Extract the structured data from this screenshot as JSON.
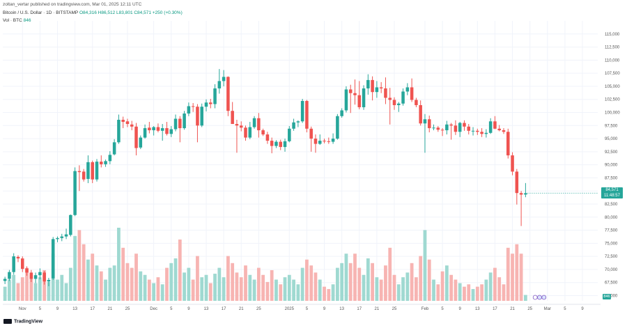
{
  "header": {
    "publisher": "zoltan_vertar published on tradingview.com, Mar 01, 2025 12:11 UTC",
    "symbol": "Bitcoin / U.S. Dollar · 1D · BITSTAMP",
    "ohlc": "O84,316 H86,512 L83,801 C84,571 +250 (+0.30%)",
    "volume_label": "Vol · BTC",
    "volume_value": "846"
  },
  "current_price": {
    "value": "84,571",
    "countdown": "11:48:57"
  },
  "volume_tag": "846",
  "footer": {
    "brand": "TradingView"
  },
  "colors": {
    "up": "#26a69a",
    "down": "#ef5350",
    "vol_up": "#9fd9d1",
    "vol_down": "#f7b4b2"
  },
  "chart_data": {
    "type": "candlestick",
    "title": "Bitcoin / U.S. Dollar · 1D · BITSTAMP",
    "ylim": [
      64000,
      117500
    ],
    "grid": true,
    "y_ticks": [
      {
        "value": 115000,
        "label": "115,000"
      },
      {
        "value": 112500,
        "label": "112,500"
      },
      {
        "value": 110000,
        "label": "110,000"
      },
      {
        "value": 107500,
        "label": "107,500"
      },
      {
        "value": 105000,
        "label": "105,000"
      },
      {
        "value": 102500,
        "label": "102,500"
      },
      {
        "value": 100000,
        "label": "100,000"
      },
      {
        "value": 97500,
        "label": "97,500"
      },
      {
        "value": 95000,
        "label": "95,000"
      },
      {
        "value": 92500,
        "label": "92,500"
      },
      {
        "value": 90000,
        "label": "90,000"
      },
      {
        "value": 87500,
        "label": "87,500"
      },
      {
        "value": 85000,
        "label": "85,000"
      },
      {
        "value": 82500,
        "label": "82,500"
      },
      {
        "value": 80000,
        "label": "80,000"
      },
      {
        "value": 77500,
        "label": "77,500"
      },
      {
        "value": 75000,
        "label": "75,000"
      },
      {
        "value": 72500,
        "label": "72,500"
      },
      {
        "value": 70000,
        "label": "70,000"
      },
      {
        "value": 67500,
        "label": "67,500"
      },
      {
        "value": 65000,
        "label": "65,000"
      }
    ],
    "x_ticks": [
      {
        "index": 4,
        "label": "Nov"
      },
      {
        "index": 8,
        "label": "5"
      },
      {
        "index": 12,
        "label": "9"
      },
      {
        "index": 16,
        "label": "13"
      },
      {
        "index": 20,
        "label": "17"
      },
      {
        "index": 24,
        "label": "21"
      },
      {
        "index": 28,
        "label": "25"
      },
      {
        "index": 34,
        "label": "Dec"
      },
      {
        "index": 38,
        "label": "5"
      },
      {
        "index": 42,
        "label": "9"
      },
      {
        "index": 46,
        "label": "13"
      },
      {
        "index": 50,
        "label": "17"
      },
      {
        "index": 54,
        "label": "21"
      },
      {
        "index": 58,
        "label": "25"
      },
      {
        "index": 65,
        "label": "2025"
      },
      {
        "index": 69,
        "label": "5"
      },
      {
        "index": 73,
        "label": "9"
      },
      {
        "index": 77,
        "label": "13"
      },
      {
        "index": 81,
        "label": "17"
      },
      {
        "index": 85,
        "label": "21"
      },
      {
        "index": 89,
        "label": "25"
      },
      {
        "index": 96,
        "label": "Feb"
      },
      {
        "index": 100,
        "label": "5"
      },
      {
        "index": 104,
        "label": "9"
      },
      {
        "index": 108,
        "label": "13"
      },
      {
        "index": 112,
        "label": "17"
      },
      {
        "index": 116,
        "label": "21"
      },
      {
        "index": 120,
        "label": "25"
      },
      {
        "index": 124,
        "label": "Mar"
      },
      {
        "index": 128,
        "label": "5"
      },
      {
        "index": 132,
        "label": "9"
      }
    ],
    "n_slots": 136,
    "candles": [
      {
        "o": 67800,
        "h": 68600,
        "l": 67200,
        "c": 68200,
        "v": 12
      },
      {
        "o": 68200,
        "h": 69900,
        "l": 67800,
        "c": 69500,
        "v": 18
      },
      {
        "o": 69500,
        "h": 73100,
        "l": 69000,
        "c": 72500,
        "v": 22
      },
      {
        "o": 72400,
        "h": 72700,
        "l": 71400,
        "c": 72100,
        "v": 15
      },
      {
        "o": 72100,
        "h": 72500,
        "l": 69500,
        "c": 70100,
        "v": 20
      },
      {
        "o": 70200,
        "h": 70600,
        "l": 68800,
        "c": 69400,
        "v": 28
      },
      {
        "o": 69400,
        "h": 69900,
        "l": 67600,
        "c": 68200,
        "v": 22
      },
      {
        "o": 68200,
        "h": 69400,
        "l": 67400,
        "c": 68900,
        "v": 15
      },
      {
        "o": 68900,
        "h": 70200,
        "l": 68100,
        "c": 69500,
        "v": 20
      },
      {
        "o": 69400,
        "h": 69700,
        "l": 67100,
        "c": 67700,
        "v": 26
      },
      {
        "o": 67700,
        "h": 68400,
        "l": 66800,
        "c": 68000,
        "v": 16
      },
      {
        "o": 68300,
        "h": 76200,
        "l": 68000,
        "c": 75800,
        "v": 40
      },
      {
        "o": 75800,
        "h": 76300,
        "l": 75200,
        "c": 76000,
        "v": 18
      },
      {
        "o": 76000,
        "h": 76800,
        "l": 75400,
        "c": 76300,
        "v": 22
      },
      {
        "o": 76300,
        "h": 77800,
        "l": 75800,
        "c": 76700,
        "v": 15
      },
      {
        "o": 76600,
        "h": 80500,
        "l": 76300,
        "c": 80400,
        "v": 28
      },
      {
        "o": 80400,
        "h": 89500,
        "l": 80200,
        "c": 88800,
        "v": 55
      },
      {
        "o": 88800,
        "h": 89900,
        "l": 85000,
        "c": 88600,
        "v": 60
      },
      {
        "o": 88700,
        "h": 89200,
        "l": 86800,
        "c": 87200,
        "v": 48
      },
      {
        "o": 87300,
        "h": 91800,
        "l": 86500,
        "c": 90500,
        "v": 35
      },
      {
        "o": 90500,
        "h": 90800,
        "l": 86500,
        "c": 87200,
        "v": 40
      },
      {
        "o": 87200,
        "h": 91100,
        "l": 86800,
        "c": 90600,
        "v": 30
      },
      {
        "o": 90600,
        "h": 91800,
        "l": 89500,
        "c": 90100,
        "v": 25
      },
      {
        "o": 90100,
        "h": 91000,
        "l": 89600,
        "c": 90700,
        "v": 18
      },
      {
        "o": 90700,
        "h": 92600,
        "l": 90100,
        "c": 91900,
        "v": 28
      },
      {
        "o": 92000,
        "h": 94900,
        "l": 91800,
        "c": 94300,
        "v": 30
      },
      {
        "o": 94300,
        "h": 99600,
        "l": 94000,
        "c": 98600,
        "v": 62
      },
      {
        "o": 98600,
        "h": 99200,
        "l": 97000,
        "c": 98200,
        "v": 45
      },
      {
        "o": 98300,
        "h": 98800,
        "l": 97200,
        "c": 97800,
        "v": 32
      },
      {
        "o": 97700,
        "h": 98400,
        "l": 96600,
        "c": 97300,
        "v": 28
      },
      {
        "o": 97300,
        "h": 98000,
        "l": 91800,
        "c": 93200,
        "v": 40
      },
      {
        "o": 93300,
        "h": 95600,
        "l": 93000,
        "c": 95200,
        "v": 25
      },
      {
        "o": 95200,
        "h": 97700,
        "l": 95000,
        "c": 97000,
        "v": 22
      },
      {
        "o": 97100,
        "h": 98200,
        "l": 96000,
        "c": 96600,
        "v": 18
      },
      {
        "o": 96600,
        "h": 97400,
        "l": 95600,
        "c": 97200,
        "v": 15
      },
      {
        "o": 97200,
        "h": 97900,
        "l": 96200,
        "c": 96500,
        "v": 20
      },
      {
        "o": 96500,
        "h": 97800,
        "l": 94600,
        "c": 97000,
        "v": 14
      },
      {
        "o": 97000,
        "h": 98200,
        "l": 95600,
        "c": 95900,
        "v": 28
      },
      {
        "o": 95900,
        "h": 97400,
        "l": 95300,
        "c": 96800,
        "v": 32
      },
      {
        "o": 96800,
        "h": 99600,
        "l": 96400,
        "c": 98800,
        "v": 36
      },
      {
        "o": 98800,
        "h": 99300,
        "l": 94300,
        "c": 97000,
        "v": 52
      },
      {
        "o": 97000,
        "h": 100300,
        "l": 96700,
        "c": 99800,
        "v": 24
      },
      {
        "o": 99800,
        "h": 101900,
        "l": 99300,
        "c": 101200,
        "v": 28
      },
      {
        "o": 101200,
        "h": 101800,
        "l": 100100,
        "c": 101100,
        "v": 18
      },
      {
        "o": 101100,
        "h": 101600,
        "l": 94300,
        "c": 97500,
        "v": 38
      },
      {
        "o": 97500,
        "h": 101700,
        "l": 97200,
        "c": 101100,
        "v": 20
      },
      {
        "o": 101100,
        "h": 102500,
        "l": 100200,
        "c": 101900,
        "v": 22
      },
      {
        "o": 101900,
        "h": 102600,
        "l": 100800,
        "c": 101600,
        "v": 15
      },
      {
        "o": 101600,
        "h": 105400,
        "l": 100800,
        "c": 104600,
        "v": 23
      },
      {
        "o": 104600,
        "h": 108300,
        "l": 103600,
        "c": 106000,
        "v": 28
      },
      {
        "o": 106000,
        "h": 108100,
        "l": 105000,
        "c": 106800,
        "v": 20
      },
      {
        "o": 106800,
        "h": 106900,
        "l": 99300,
        "c": 100300,
        "v": 38
      },
      {
        "o": 100300,
        "h": 102000,
        "l": 97800,
        "c": 97800,
        "v": 32
      },
      {
        "o": 97800,
        "h": 98600,
        "l": 92300,
        "c": 97500,
        "v": 24
      },
      {
        "o": 97500,
        "h": 98300,
        "l": 96400,
        "c": 97100,
        "v": 20
      },
      {
        "o": 97100,
        "h": 97500,
        "l": 94600,
        "c": 95200,
        "v": 30
      },
      {
        "o": 95200,
        "h": 98200,
        "l": 94900,
        "c": 97200,
        "v": 22
      },
      {
        "o": 97200,
        "h": 99300,
        "l": 96900,
        "c": 98900,
        "v": 18
      },
      {
        "o": 98900,
        "h": 99900,
        "l": 95200,
        "c": 96600,
        "v": 28
      },
      {
        "o": 96600,
        "h": 96900,
        "l": 95500,
        "c": 95800,
        "v": 22
      },
      {
        "o": 95800,
        "h": 96300,
        "l": 94000,
        "c": 94600,
        "v": 16
      },
      {
        "o": 94600,
        "h": 95200,
        "l": 92200,
        "c": 93600,
        "v": 26
      },
      {
        "o": 93600,
        "h": 94700,
        "l": 93200,
        "c": 94400,
        "v": 18
      },
      {
        "o": 94400,
        "h": 94800,
        "l": 92800,
        "c": 93400,
        "v": 14
      },
      {
        "o": 93400,
        "h": 95000,
        "l": 92500,
        "c": 94500,
        "v": 20
      },
      {
        "o": 94500,
        "h": 97400,
        "l": 94300,
        "c": 96900,
        "v": 22
      },
      {
        "o": 96900,
        "h": 98800,
        "l": 96500,
        "c": 98100,
        "v": 18
      },
      {
        "o": 98100,
        "h": 98500,
        "l": 97200,
        "c": 98300,
        "v": 14
      },
      {
        "o": 98300,
        "h": 102600,
        "l": 98000,
        "c": 102200,
        "v": 28
      },
      {
        "o": 102200,
        "h": 102400,
        "l": 96200,
        "c": 96900,
        "v": 35
      },
      {
        "o": 96900,
        "h": 97300,
        "l": 92500,
        "c": 95000,
        "v": 30
      },
      {
        "o": 95000,
        "h": 95800,
        "l": 92300,
        "c": 94000,
        "v": 24
      },
      {
        "o": 94000,
        "h": 95800,
        "l": 93800,
        "c": 94600,
        "v": 18
      },
      {
        "o": 94600,
        "h": 95000,
        "l": 94100,
        "c": 94500,
        "v": 12
      },
      {
        "o": 94500,
        "h": 95200,
        "l": 94000,
        "c": 94400,
        "v": 10
      },
      {
        "o": 94400,
        "h": 96000,
        "l": 94000,
        "c": 95000,
        "v": 14
      },
      {
        "o": 95000,
        "h": 99700,
        "l": 94800,
        "c": 99300,
        "v": 28
      },
      {
        "o": 99300,
        "h": 100800,
        "l": 99000,
        "c": 100400,
        "v": 32
      },
      {
        "o": 100400,
        "h": 105000,
        "l": 100000,
        "c": 104400,
        "v": 40
      },
      {
        "o": 104400,
        "h": 105300,
        "l": 99900,
        "c": 103700,
        "v": 32
      },
      {
        "o": 103700,
        "h": 106300,
        "l": 101500,
        "c": 103300,
        "v": 40
      },
      {
        "o": 103300,
        "h": 106000,
        "l": 100600,
        "c": 101000,
        "v": 28
      },
      {
        "o": 101000,
        "h": 105200,
        "l": 100500,
        "c": 104600,
        "v": 22
      },
      {
        "o": 104600,
        "h": 107300,
        "l": 103400,
        "c": 106200,
        "v": 36
      },
      {
        "o": 106200,
        "h": 106900,
        "l": 102300,
        "c": 103900,
        "v": 32
      },
      {
        "o": 103900,
        "h": 106000,
        "l": 102800,
        "c": 104800,
        "v": 20
      },
      {
        "o": 104800,
        "h": 105800,
        "l": 103700,
        "c": 104600,
        "v": 18
      },
      {
        "o": 104600,
        "h": 106700,
        "l": 101600,
        "c": 102800,
        "v": 30
      },
      {
        "o": 102800,
        "h": 104700,
        "l": 97700,
        "c": 102400,
        "v": 45
      },
      {
        "o": 102400,
        "h": 102900,
        "l": 100500,
        "c": 101400,
        "v": 22
      },
      {
        "o": 101400,
        "h": 102000,
        "l": 100100,
        "c": 101700,
        "v": 14
      },
      {
        "o": 101700,
        "h": 104600,
        "l": 101300,
        "c": 104000,
        "v": 20
      },
      {
        "o": 104000,
        "h": 105600,
        "l": 103300,
        "c": 104800,
        "v": 24
      },
      {
        "o": 104800,
        "h": 106500,
        "l": 102000,
        "c": 102400,
        "v": 32
      },
      {
        "o": 102400,
        "h": 102800,
        "l": 101000,
        "c": 101400,
        "v": 20
      },
      {
        "o": 101400,
        "h": 102300,
        "l": 97500,
        "c": 97900,
        "v": 38
      },
      {
        "o": 97900,
        "h": 99700,
        "l": 92300,
        "c": 98700,
        "v": 60
      },
      {
        "o": 98700,
        "h": 99400,
        "l": 96200,
        "c": 97000,
        "v": 35
      },
      {
        "o": 97000,
        "h": 97700,
        "l": 96600,
        "c": 97100,
        "v": 18
      },
      {
        "o": 97100,
        "h": 97400,
        "l": 96300,
        "c": 96700,
        "v": 14
      },
      {
        "o": 96700,
        "h": 97000,
        "l": 95500,
        "c": 96600,
        "v": 25
      },
      {
        "o": 96600,
        "h": 98400,
        "l": 95800,
        "c": 97700,
        "v": 30
      },
      {
        "o": 97700,
        "h": 98000,
        "l": 94800,
        "c": 97500,
        "v": 22
      },
      {
        "o": 97500,
        "h": 98500,
        "l": 95700,
        "c": 96300,
        "v": 18
      },
      {
        "o": 96300,
        "h": 98200,
        "l": 95300,
        "c": 98000,
        "v": 15
      },
      {
        "o": 98000,
        "h": 98500,
        "l": 96500,
        "c": 97300,
        "v": 12
      },
      {
        "o": 97300,
        "h": 97800,
        "l": 95800,
        "c": 96500,
        "v": 14
      },
      {
        "o": 96500,
        "h": 97200,
        "l": 95600,
        "c": 96500,
        "v": 10
      },
      {
        "o": 96500,
        "h": 96900,
        "l": 95700,
        "c": 96300,
        "v": 12
      },
      {
        "o": 96300,
        "h": 97000,
        "l": 95300,
        "c": 95900,
        "v": 14
      },
      {
        "o": 95900,
        "h": 96800,
        "l": 95200,
        "c": 96100,
        "v": 18
      },
      {
        "o": 96100,
        "h": 98900,
        "l": 95900,
        "c": 98300,
        "v": 24
      },
      {
        "o": 98300,
        "h": 99300,
        "l": 96800,
        "c": 96900,
        "v": 28
      },
      {
        "o": 96900,
        "h": 97600,
        "l": 96400,
        "c": 96600,
        "v": 20
      },
      {
        "o": 96600,
        "h": 97000,
        "l": 95900,
        "c": 96300,
        "v": 14
      },
      {
        "o": 96300,
        "h": 96900,
        "l": 91200,
        "c": 91800,
        "v": 45
      },
      {
        "o": 91800,
        "h": 92400,
        "l": 88000,
        "c": 88700,
        "v": 40
      },
      {
        "o": 88700,
        "h": 89200,
        "l": 82400,
        "c": 84600,
        "v": 48
      },
      {
        "o": 84600,
        "h": 85000,
        "l": 78300,
        "c": 84300,
        "v": 40
      },
      {
        "o": 84316,
        "h": 86512,
        "l": 83801,
        "c": 84571,
        "v": 5
      }
    ]
  }
}
